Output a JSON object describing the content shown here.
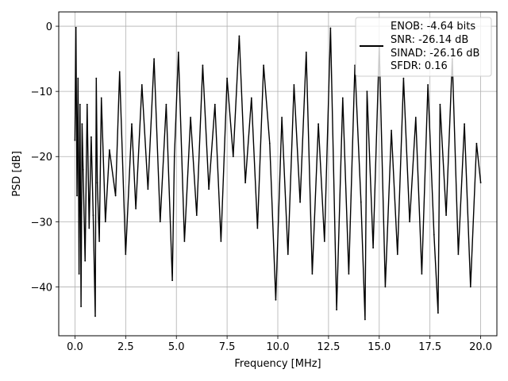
{
  "chart_data": {
    "type": "line",
    "xlabel": "Frequency [MHz]",
    "ylabel": "PSD [dB]",
    "xlim": [
      -0.8,
      20.8
    ],
    "ylim": [
      -47.5,
      2.2
    ],
    "xticks": [
      0.0,
      2.5,
      5.0,
      7.5,
      10.0,
      12.5,
      15.0,
      17.5,
      20.0
    ],
    "xtick_labels": [
      "0.0",
      "2.5",
      "5.0",
      "7.5",
      "10.0",
      "12.5",
      "15.0",
      "17.5",
      "20.0"
    ],
    "yticks": [
      0,
      -10,
      -20,
      -30,
      -40
    ],
    "ytick_labels": [
      "0",
      "−10",
      "−20",
      "−30",
      "−40"
    ],
    "grid": true,
    "legend_position": "top-right",
    "legend_entries": [
      "ENOB: -4.64 bits",
      "SNR: -26.14 dB",
      "SINAD: -26.16 dB",
      "SFDR: 0.16"
    ],
    "series": [
      {
        "color": "#000000",
        "x": [
          0.0,
          0.05,
          0.1,
          0.15,
          0.2,
          0.25,
          0.3,
          0.35,
          0.4,
          0.5,
          0.6,
          0.7,
          0.8,
          0.9,
          1.0,
          1.05,
          1.1,
          1.2,
          1.3,
          1.5,
          1.7,
          2.0,
          2.2,
          2.5,
          2.8,
          3.0,
          3.3,
          3.6,
          3.9,
          4.2,
          4.5,
          4.8,
          4.9,
          5.1,
          5.4,
          5.7,
          6.0,
          6.3,
          6.6,
          6.9,
          7.2,
          7.5,
          7.8,
          8.1,
          8.4,
          8.7,
          9.0,
          9.3,
          9.6,
          9.9,
          10.2,
          10.5,
          10.8,
          11.1,
          11.4,
          11.7,
          12.0,
          12.3,
          12.6,
          12.9,
          13.2,
          13.5,
          13.8,
          14.1,
          14.3,
          14.4,
          14.7,
          15.0,
          15.3,
          15.6,
          15.9,
          16.2,
          16.5,
          16.8,
          17.1,
          17.4,
          17.7,
          17.9,
          18.0,
          18.3,
          18.6,
          18.9,
          19.2,
          19.5,
          19.8,
          20.0
        ],
        "y": [
          -17.5,
          -0.2,
          -26,
          -8,
          -38,
          -12,
          -43,
          -15,
          -22,
          -36,
          -12,
          -31,
          -17,
          -29,
          -44.5,
          -8,
          -24,
          -33,
          -11,
          -30,
          -19,
          -26,
          -7,
          -35,
          -15,
          -28,
          -9,
          -25,
          -5,
          -30,
          -12,
          -39,
          -20,
          -4,
          -33,
          -14,
          -29,
          -6,
          -25,
          -12,
          -33,
          -8,
          -20,
          -1.5,
          -24,
          -11,
          -31,
          -6,
          -18,
          -42,
          -14,
          -35,
          -9,
          -27,
          -4,
          -38,
          -15,
          -33,
          -0.3,
          -43.5,
          -11,
          -38,
          -6,
          -27,
          -45,
          -10,
          -34,
          -3,
          -40,
          -16,
          -35,
          -8,
          -30,
          -14,
          -38,
          -9,
          -32,
          -44,
          -12,
          -29,
          -5,
          -35,
          -15,
          -40,
          -18,
          -24
        ]
      }
    ]
  }
}
